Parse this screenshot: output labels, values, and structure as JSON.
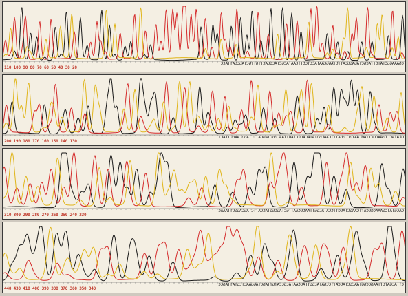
{
  "colors": {
    "background": "#cfc9bf",
    "paper": "#f4efe3",
    "trace_black": "#1a1a1a",
    "trace_red": "#d42a2a",
    "trace_yellow": "#e0b51a",
    "label_text": "#222222",
    "number_text": "#c0392b"
  },
  "panels": [
    {
      "sequence": "CGAAAGGCTATGTTACGCTAGAGGCATTGTAGGCAATACCTCGTTCAATACGCTACGCACTTGTTGCTAGCGATTACC",
      "positions": "110   100   90   80   70   60   50   40   30   20"
    },
    {
      "sequence": "GCATACCTGAACGCTTAGCAATGCCGGATTTCAACGGTATACACCCTAGTTAACGGCTAGCATTCTAGGCAAGCTTACT",
      "positions": "200   190   180   170   160   150   140   130"
    },
    {
      "sequence": "GACGTATCGAAACGGCATTCAAGCTAGGTTCCATACGGTTAACGCAATTGCTAGCGGTACCATTCTAGCAGGCTTAAAC",
      "positions": "310   300   290   280   270   260   250   240   230"
    },
    {
      "sequence": "CTTACGATCTTAAGCCGGTAACGCTAGCATTCCGATACGGTTAGCAATACGCCATGTTAGCTAGGAACTCGTATTAGCC",
      "positions": "440   430   410   400   390   380   370   360   350   340"
    }
  ]
}
